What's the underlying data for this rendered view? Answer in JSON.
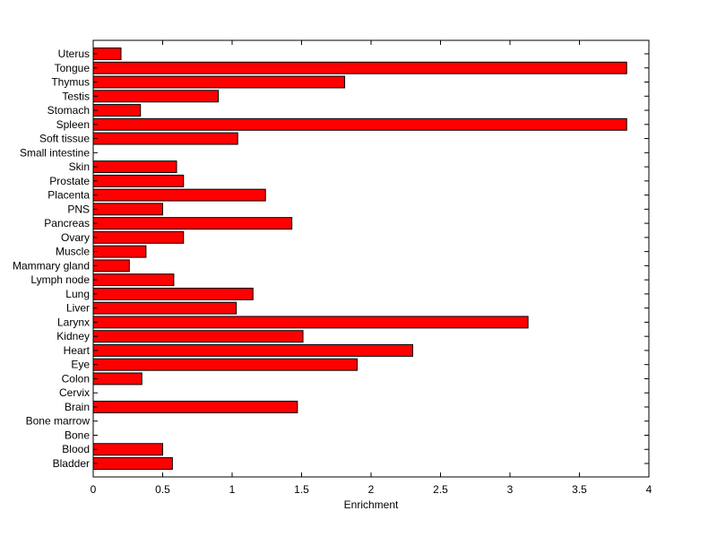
{
  "chart_data": {
    "type": "bar",
    "orientation": "horizontal",
    "xlabel": "Enrichment",
    "xlim": [
      0,
      4
    ],
    "xticks": [
      0,
      0.5,
      1,
      1.5,
      2,
      2.5,
      3,
      3.5,
      4
    ],
    "xtick_labels": [
      "0",
      "0.5",
      "1",
      "1.5",
      "2",
      "2.5",
      "3",
      "3.5",
      "4"
    ],
    "grid": false,
    "bar_color": "#ff0000",
    "categories": [
      "Bladder",
      "Blood",
      "Bone",
      "Bone marrow",
      "Brain",
      "Cervix",
      "Colon",
      "Eye",
      "Heart",
      "Kidney",
      "Larynx",
      "Liver",
      "Lung",
      "Lymph node",
      "Mammary gland",
      "Muscle",
      "Ovary",
      "Pancreas",
      "PNS",
      "Placenta",
      "Prostate",
      "Skin",
      "Small intestine",
      "Soft tissue",
      "Spleen",
      "Stomach",
      "Testis",
      "Thymus",
      "Tongue",
      "Uterus"
    ],
    "values": [
      0.57,
      0.5,
      0,
      0,
      1.47,
      0,
      0.35,
      1.9,
      2.3,
      1.51,
      3.13,
      1.03,
      1.15,
      0.58,
      0.26,
      0.38,
      0.65,
      1.43,
      0.5,
      1.24,
      0.65,
      0.6,
      0,
      1.04,
      3.84,
      0.34,
      0.9,
      1.81,
      3.84,
      0.2
    ]
  }
}
